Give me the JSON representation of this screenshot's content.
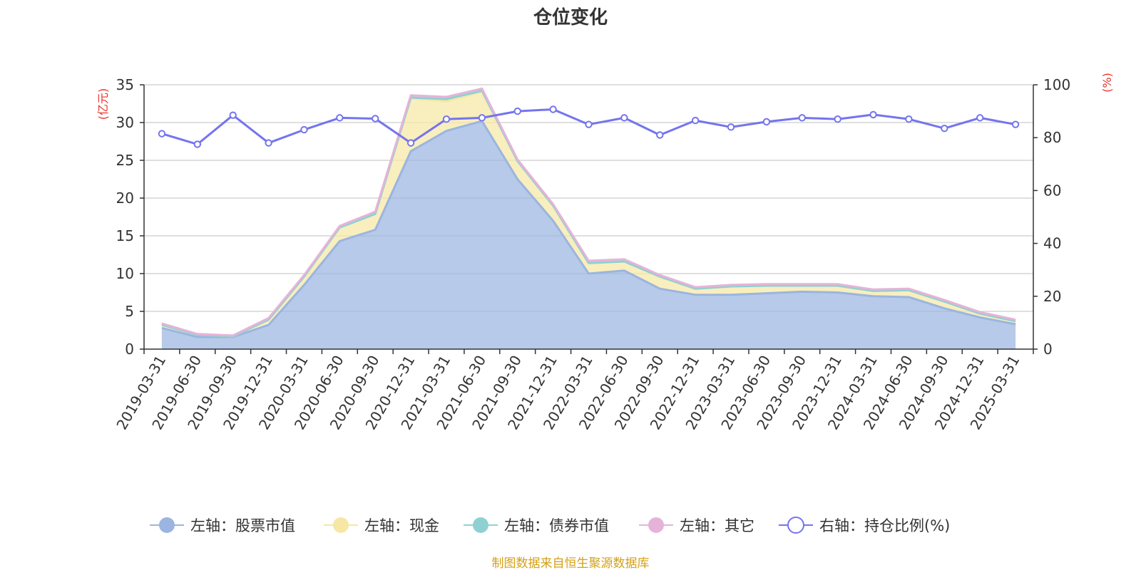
{
  "chart_data": {
    "type": "area",
    "title": "仓位变化",
    "source": "制图数据来自恒生聚源数据库",
    "left_axis": {
      "unit": "(亿元)",
      "ylim": [
        0,
        35
      ],
      "ticks": [
        0,
        5,
        10,
        15,
        20,
        25,
        30,
        35
      ]
    },
    "right_axis": {
      "unit": "(%)",
      "ylim": [
        0,
        100
      ],
      "ticks": [
        0,
        20,
        40,
        60,
        80,
        100
      ]
    },
    "grid": true,
    "legend_position": "bottom",
    "categories": [
      "2019-03-31",
      "2019-06-30",
      "2019-09-30",
      "2019-12-31",
      "2020-03-31",
      "2020-06-30",
      "2020-09-30",
      "2020-12-31",
      "2021-03-31",
      "2021-06-30",
      "2021-09-30",
      "2021-12-31",
      "2022-03-31",
      "2022-06-30",
      "2022-09-30",
      "2022-12-31",
      "2023-03-31",
      "2023-06-30",
      "2023-09-30",
      "2023-12-31",
      "2024-03-31",
      "2024-06-30",
      "2024-09-30",
      "2024-12-31",
      "2025-03-31"
    ],
    "series": [
      {
        "name": "左轴：股票市值",
        "axis": "left",
        "stack": true,
        "color": "#9bb5e0",
        "values": [
          2.8,
          1.6,
          1.6,
          3.2,
          8.5,
          14.3,
          15.8,
          26.2,
          28.9,
          30.2,
          22.5,
          17.0,
          10.0,
          10.4,
          8.0,
          7.2,
          7.2,
          7.4,
          7.6,
          7.5,
          7.0,
          6.9,
          5.4,
          4.2,
          3.3
        ]
      },
      {
        "name": "左轴：现金",
        "axis": "left",
        "stack": true,
        "color": "#f6e7a5",
        "values": [
          0.4,
          0.3,
          0.1,
          0.7,
          1.1,
          1.8,
          2.1,
          7.0,
          3.9,
          3.9,
          2.4,
          2.0,
          1.4,
          1.2,
          1.6,
          0.8,
          1.1,
          1.0,
          0.8,
          0.9,
          0.7,
          0.9,
          0.9,
          0.5,
          0.4
        ]
      },
      {
        "name": "左轴：债券市值",
        "axis": "left",
        "stack": true,
        "color": "#8fd1d2",
        "values": [
          0,
          0,
          0,
          0,
          0,
          0,
          0,
          0.1,
          0.3,
          0.1,
          0,
          0,
          0,
          0,
          0,
          0,
          0,
          0,
          0,
          0,
          0,
          0,
          0,
          0,
          0
        ]
      },
      {
        "name": "左轴：其它",
        "axis": "left",
        "stack": true,
        "color": "#e6b3d8",
        "values": [
          0.2,
          0.1,
          0.1,
          0.2,
          0.2,
          0.2,
          0.3,
          0.3,
          0.3,
          0.3,
          0.2,
          0.2,
          0.3,
          0.3,
          0.2,
          0.2,
          0.2,
          0.2,
          0.2,
          0.2,
          0.2,
          0.2,
          0.2,
          0.2,
          0.2
        ]
      },
      {
        "name": "右轴：持仓比例(%)",
        "axis": "right",
        "stack": false,
        "color": "#7474ee",
        "values": [
          81.5,
          77.5,
          88.5,
          78.0,
          83.0,
          87.5,
          87.2,
          78.0,
          87.0,
          87.5,
          90.0,
          90.7,
          85.0,
          87.5,
          81.0,
          86.5,
          84.0,
          86.0,
          87.5,
          87.0,
          88.7,
          87.0,
          83.5,
          87.5,
          85.0
        ]
      }
    ]
  },
  "colors": {
    "axis_unit": "#e8332a",
    "source": "#d4a017",
    "grid": "#cccccc",
    "axis": "#333333"
  }
}
